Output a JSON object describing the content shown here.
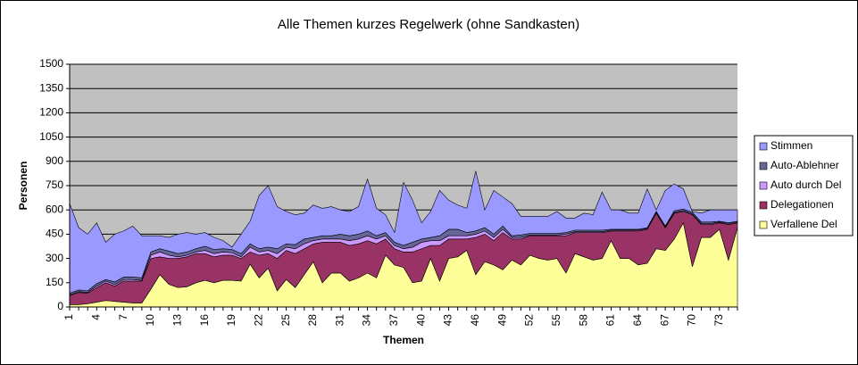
{
  "chart_data": {
    "type": "stacked_area",
    "title": "Alle Themen kurzes Regelwerk (ohne Sandkasten)",
    "x_label": "Themen",
    "y_label": "Personen",
    "categories": [
      1,
      null,
      null,
      4,
      null,
      null,
      7,
      null,
      null,
      10,
      null,
      null,
      13,
      null,
      null,
      16,
      null,
      null,
      19,
      null,
      null,
      22,
      null,
      null,
      25,
      null,
      null,
      28,
      null,
      null,
      31,
      null,
      null,
      34,
      null,
      null,
      37,
      null,
      null,
      40,
      null,
      null,
      43,
      null,
      null,
      46,
      null,
      null,
      49,
      null,
      null,
      52,
      null,
      null,
      55,
      null,
      null,
      58,
      null,
      null,
      61,
      null,
      null,
      64,
      null,
      null,
      67,
      null,
      null,
      70,
      null,
      null,
      73,
      null,
      null
    ],
    "series": [
      {
        "name": "Verfallene Del",
        "color": "#ffff99",
        "values": [
          15,
          15,
          20,
          30,
          40,
          35,
          30,
          25,
          25,
          110,
          200,
          140,
          120,
          125,
          150,
          165,
          150,
          165,
          165,
          160,
          265,
          180,
          240,
          100,
          170,
          120,
          200,
          280,
          150,
          210,
          210,
          160,
          180,
          210,
          180,
          320,
          260,
          245,
          150,
          160,
          300,
          160,
          300,
          310,
          350,
          200,
          280,
          260,
          230,
          290,
          260,
          320,
          300,
          290,
          300,
          210,
          330,
          310,
          290,
          300,
          410,
          300,
          300,
          260,
          270,
          360,
          350,
          420,
          520,
          250,
          430,
          430,
          480,
          290,
          490
        ]
      },
      {
        "name": "Delegationen",
        "color": "#993366",
        "values": [
          55,
          75,
          65,
          90,
          110,
          95,
          130,
          135,
          135,
          190,
          110,
          160,
          180,
          185,
          180,
          165,
          160,
          155,
          155,
          140,
          75,
          140,
          90,
          200,
          180,
          210,
          160,
          110,
          250,
          190,
          190,
          220,
          210,
          200,
          210,
          100,
          100,
          95,
          190,
          200,
          80,
          220,
          120,
          110,
          70,
          230,
          170,
          150,
          230,
          130,
          160,
          120,
          140,
          150,
          140,
          230,
          130,
          150,
          170,
          160,
          60,
          170,
          170,
          210,
          210,
          220,
          140,
          160,
          70,
          320,
          80,
          80,
          40,
          220,
          30
        ]
      },
      {
        "name": "Auto durch Del",
        "color": "#cc99ff",
        "values": [
          5,
          5,
          5,
          10,
          10,
          10,
          10,
          10,
          5,
          20,
          30,
          20,
          10,
          10,
          10,
          20,
          20,
          20,
          15,
          10,
          30,
          20,
          20,
          30,
          20,
          30,
          30,
          20,
          20,
          20,
          20,
          30,
          30,
          30,
          30,
          20,
          20,
          20,
          30,
          40,
          30,
          30,
          20,
          20,
          20,
          20,
          20,
          20,
          20,
          10,
          10,
          5,
          5,
          5,
          5,
          10,
          5,
          5,
          5,
          5,
          5,
          5,
          5,
          5,
          5,
          5,
          5,
          5,
          5,
          5,
          5,
          5,
          5,
          5,
          5
        ]
      },
      {
        "name": "Auto-Ablehner",
        "color": "#666699",
        "values": [
          10,
          10,
          10,
          15,
          10,
          15,
          15,
          15,
          15,
          20,
          20,
          25,
          20,
          20,
          20,
          25,
          25,
          20,
          20,
          20,
          20,
          20,
          20,
          30,
          20,
          25,
          30,
          20,
          20,
          20,
          30,
          30,
          30,
          30,
          20,
          20,
          20,
          20,
          30,
          20,
          20,
          30,
          40,
          40,
          20,
          20,
          20,
          20,
          20,
          10,
          15,
          10,
          10,
          10,
          10,
          10,
          10,
          10,
          10,
          10,
          5,
          5,
          5,
          5,
          5,
          5,
          5,
          10,
          10,
          10,
          10,
          10,
          5,
          5,
          5
        ]
      },
      {
        "name": "Stimmen",
        "color": "#9999ff",
        "values": [
          555,
          385,
          350,
          375,
          230,
          295,
          285,
          315,
          260,
          100,
          80,
          85,
          120,
          120,
          90,
          85,
          75,
          50,
          15,
          120,
          140,
          330,
          380,
          260,
          200,
          185,
          160,
          200,
          170,
          180,
          150,
          150,
          170,
          320,
          170,
          110,
          60,
          390,
          260,
          100,
          160,
          280,
          180,
          150,
          150,
          370,
          110,
          270,
          180,
          200,
          115,
          105,
          105,
          105,
          135,
          90,
          75,
          105,
          95,
          235,
          120,
          120,
          100,
          100,
          240,
          10,
          220,
          165,
          125,
          5,
          55,
          75,
          70,
          80,
          70
        ]
      }
    ],
    "ylim": [
      0,
      1500
    ],
    "yticks": [
      0,
      150,
      300,
      450,
      600,
      750,
      900,
      1050,
      1200,
      1350,
      1500
    ],
    "grid": true,
    "plot_background": "#c0c0c0",
    "legend": "right"
  }
}
